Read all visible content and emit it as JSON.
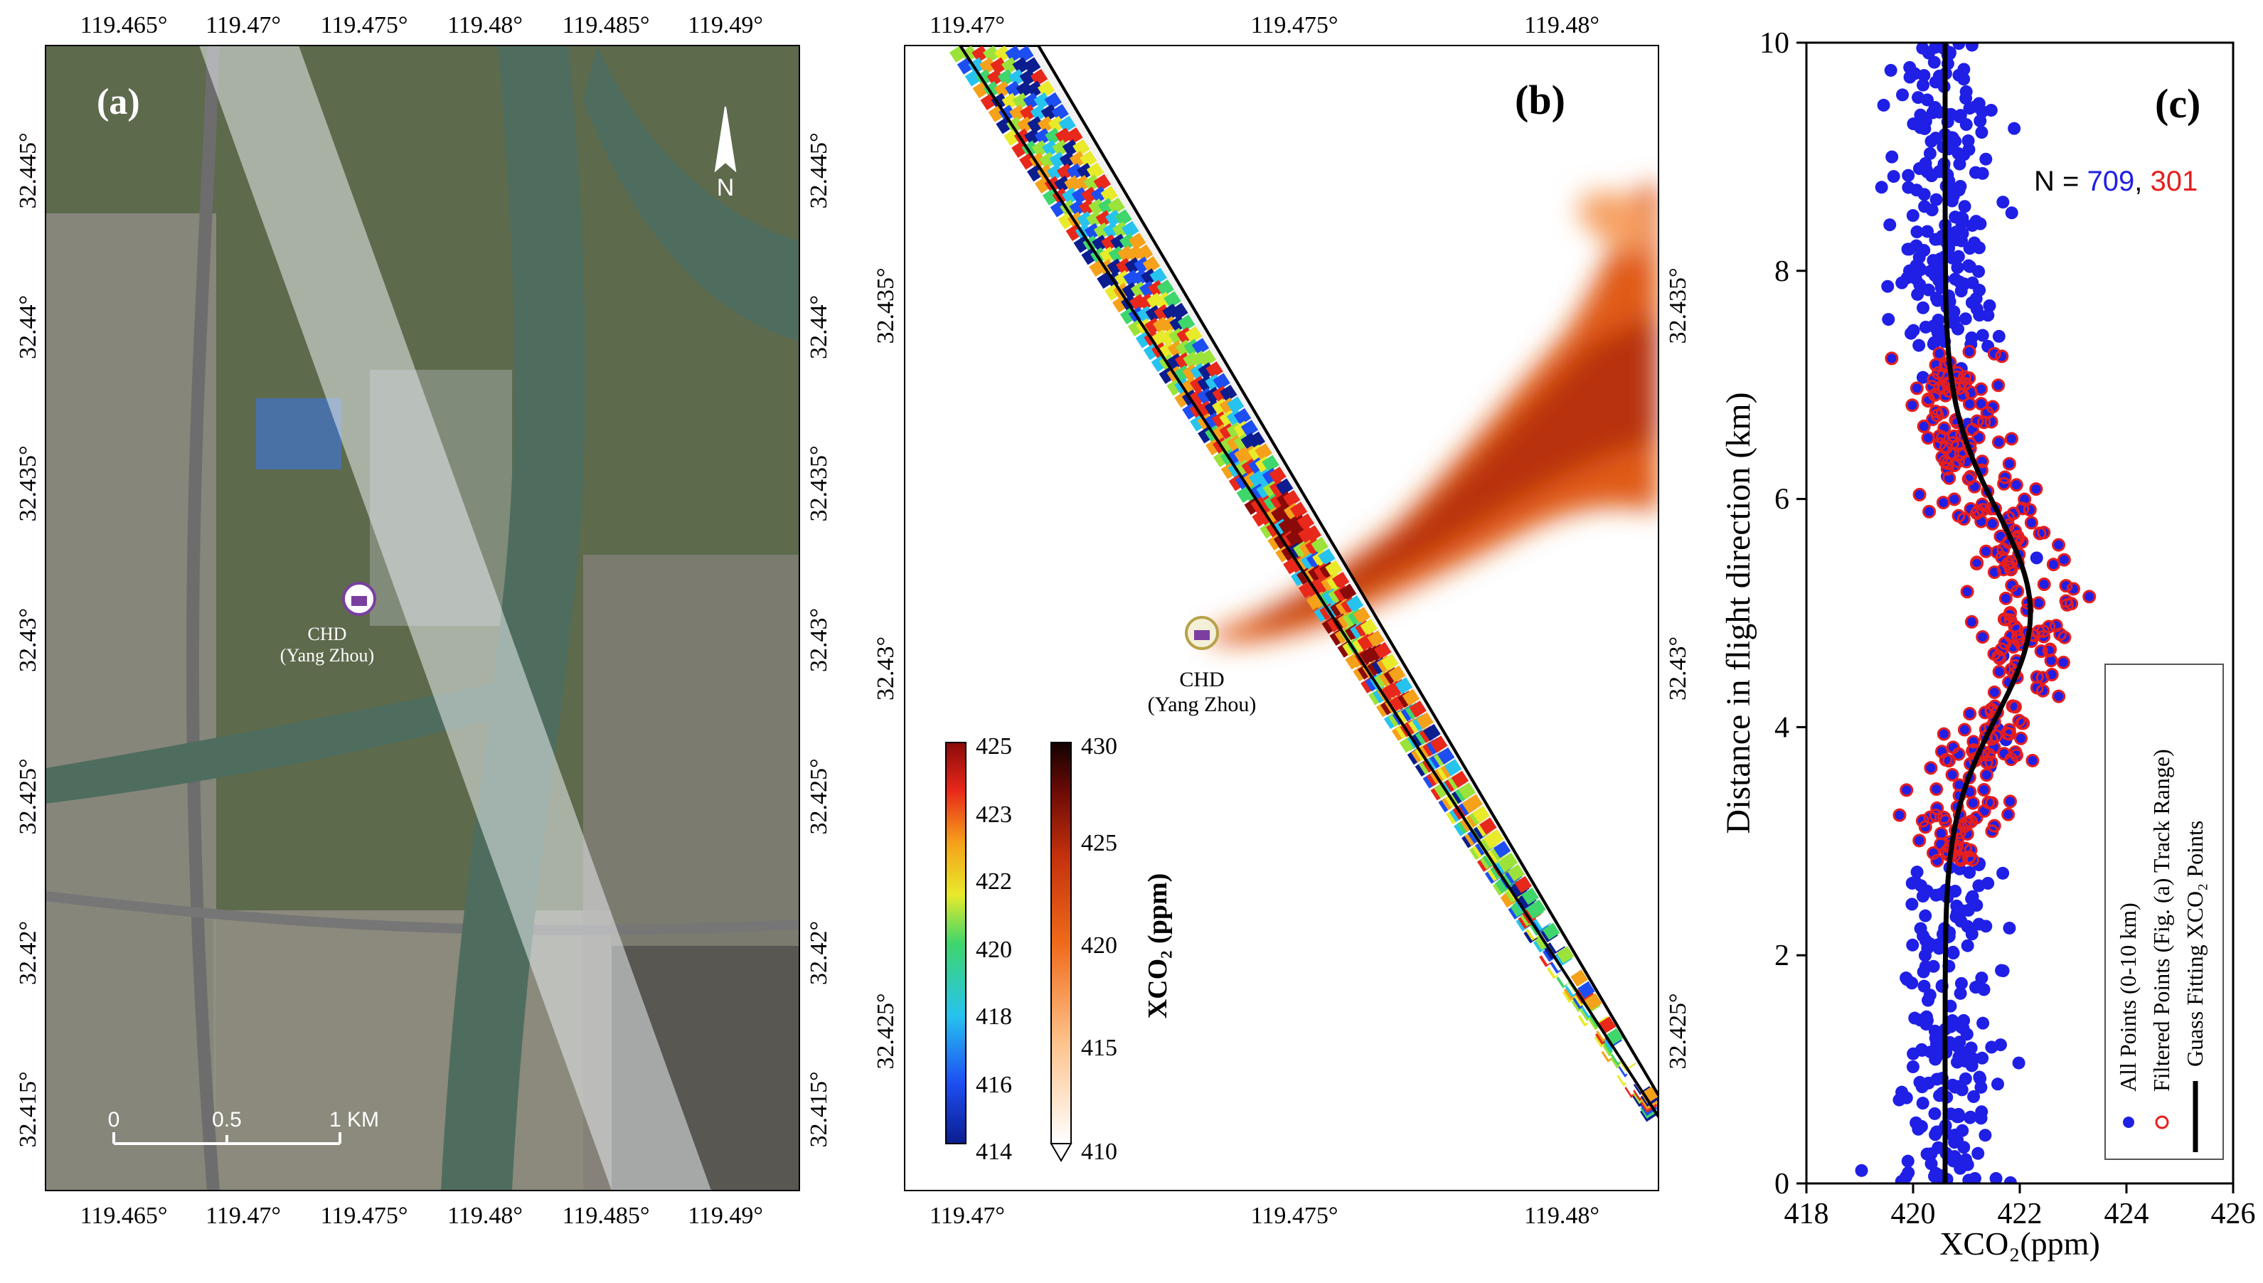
{
  "panel_a": {
    "label": "(a)",
    "lon_ticks": [
      "119.465°",
      "119.47°",
      "119.475°",
      "119.48°",
      "119.485°",
      "119.49°"
    ],
    "lat_ticks": [
      "32.445°",
      "32.44°",
      "32.435°",
      "32.43°",
      "32.425°",
      "32.42°",
      "32.415°"
    ],
    "site_name": "CHD",
    "site_sub": "(Yang Zhou)",
    "scale_labels": [
      "0",
      "0.5",
      "1 KM"
    ],
    "north": "N",
    "colors": {
      "water": "#4f6d5e",
      "land": "#5d6a4c",
      "urban": "#8e8b84",
      "track": "#e8ebee"
    }
  },
  "panel_b": {
    "label": "(b)",
    "lon_ticks": [
      "119.47°",
      "119.475°",
      "119.48°"
    ],
    "lat_ticks": [
      "32.435°",
      "32.43°",
      "32.425°"
    ],
    "site_name": "CHD",
    "site_sub": "(Yang Zhou)",
    "colorbar_title": "XCO₂ (ppm)",
    "colorbar_track": {
      "ticks": [
        "425",
        "423",
        "422",
        "420",
        "418",
        "416",
        "414"
      ],
      "min": 414,
      "max": 425
    },
    "colorbar_plume": {
      "ticks": [
        "430",
        "425",
        "420",
        "415",
        "410"
      ],
      "min": 410,
      "max": 430
    }
  },
  "chart_data": {
    "type": "scatter",
    "label": "(c)",
    "xlabel": "XCO₂(ppm)",
    "ylabel": "Distance in flight direction (km)",
    "xlim": [
      418,
      426
    ],
    "ylim": [
      0,
      10
    ],
    "xticks": [
      "418",
      "420",
      "422",
      "424",
      "426"
    ],
    "yticks": [
      "0",
      "2",
      "4",
      "6",
      "8",
      "10"
    ],
    "annotation": {
      "prefix": "N = ",
      "n_all": "709",
      "sep": ", ",
      "n_filtered": "301"
    },
    "legend": {
      "position": "bottom-right",
      "entries": [
        "All Points (0-10 km)",
        "Filtered Points (Fig. (a) Track Range)",
        "Guass Fitting XCO₂ Points"
      ]
    },
    "colors": {
      "all": "#1f1fe6",
      "filtered_edge": "#e61e1e",
      "fit": "#000000"
    },
    "all_points": {
      "count": 709,
      "y_range_km": [
        0,
        10
      ],
      "x_center_ppm": 420.6,
      "note_points": [
        [
          420.2,
          0.3
        ],
        [
          420.9,
          1.1
        ],
        [
          420.4,
          2.2
        ],
        [
          421.1,
          3.3
        ],
        [
          422.5,
          4.6
        ],
        [
          421.6,
          5.5
        ],
        [
          420.9,
          6.8
        ],
        [
          420.1,
          8.2
        ],
        [
          421.2,
          9.5
        ]
      ]
    },
    "filtered_points": {
      "count": 301,
      "y_range_km": [
        2.8,
        7.3
      ]
    },
    "fit": {
      "baseline_ppm": 420.6,
      "amplitude_ppm": 1.6,
      "center_km": 5.0,
      "sigma_km": 0.9
    }
  }
}
